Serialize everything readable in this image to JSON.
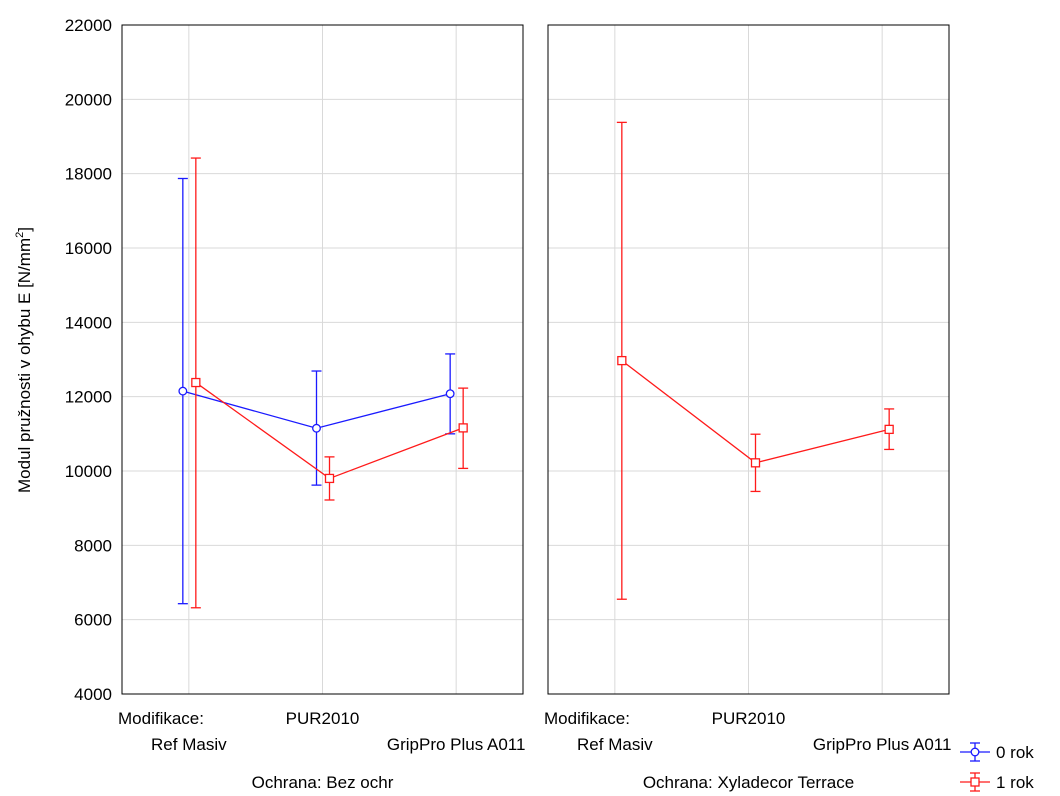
{
  "chart_data": {
    "type": "line",
    "ylabel": "Modul pružnosti v ohybu E [N/mm",
    "ylabel_sup": "2",
    "ylabel_end": "]",
    "ylim": [
      4000,
      22000
    ],
    "yticks": [
      4000,
      6000,
      8000,
      10000,
      12000,
      14000,
      16000,
      18000,
      20000,
      22000
    ],
    "grid": true,
    "categories": [
      "Ref Masiv",
      "PUR2010",
      "GripPro Plus A011"
    ],
    "modifikace_label": "Modifikace:",
    "legend_position": "bottom-right",
    "legend": [
      {
        "name": "0 rok",
        "color": "#1a1aff",
        "marker": "circle"
      },
      {
        "name": "1 rok",
        "color": "#ff1a1a",
        "marker": "square"
      }
    ],
    "panels": [
      {
        "caption": "Ochrana: Bez ochr",
        "series": [
          {
            "name": "0 rok",
            "means": [
              12150,
              11150,
              12080
            ],
            "lower": [
              6430,
              9620,
              11000
            ],
            "upper": [
              17870,
              12690,
              13150
            ]
          },
          {
            "name": "1 rok",
            "means": [
              12380,
              9800,
              11160
            ],
            "lower": [
              6320,
              9220,
              10070
            ],
            "upper": [
              18420,
              10380,
              12230
            ]
          }
        ]
      },
      {
        "caption": "Ochrana: Xyladecor Terrace",
        "series": [
          {
            "name": "1 rok",
            "means": [
              12970,
              10220,
              11120
            ],
            "lower": [
              6550,
              9450,
              10580
            ],
            "upper": [
              19380,
              10990,
              11670
            ]
          }
        ]
      }
    ]
  }
}
